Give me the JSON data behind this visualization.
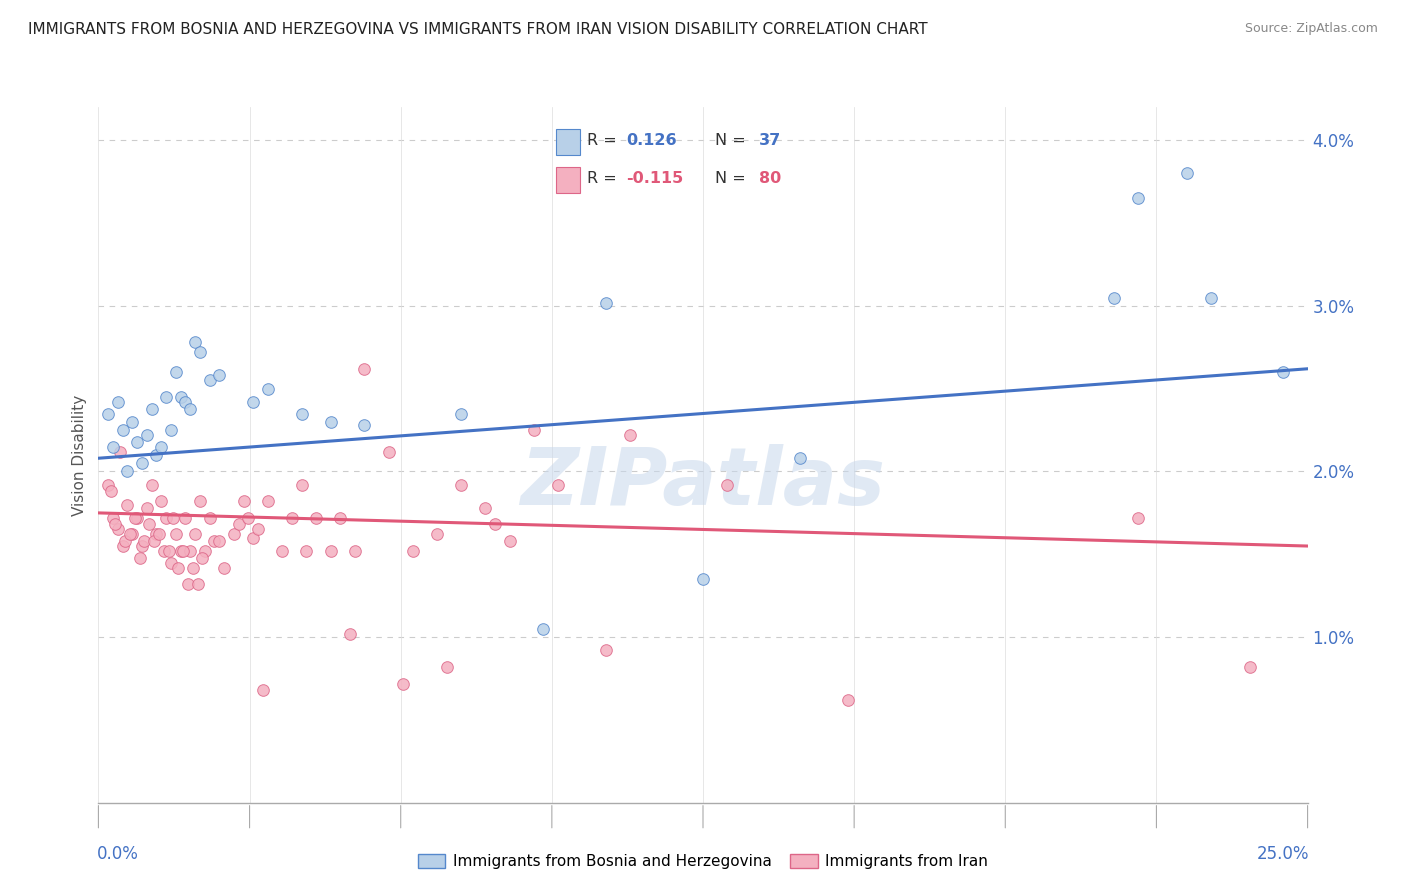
{
  "title": "IMMIGRANTS FROM BOSNIA AND HERZEGOVINA VS IMMIGRANTS FROM IRAN VISION DISABILITY CORRELATION CHART",
  "source": "Source: ZipAtlas.com",
  "ylabel": "Vision Disability",
  "xmin": 0.0,
  "xmax": 25.0,
  "ymin": 0.0,
  "ymax": 4.2,
  "ytick_vals": [
    0.0,
    1.0,
    2.0,
    3.0,
    4.0
  ],
  "ytick_labels": [
    "",
    "1.0%",
    "2.0%",
    "3.0%",
    "4.0%"
  ],
  "blue_R": 0.126,
  "blue_N": 37,
  "pink_R": -0.115,
  "pink_N": 80,
  "blue_color": "#b8d0e8",
  "pink_color": "#f4b0c0",
  "blue_edge_color": "#5588cc",
  "pink_edge_color": "#dd6688",
  "blue_line_color": "#4472c4",
  "pink_line_color": "#e05878",
  "blue_line_start_y": 2.08,
  "blue_line_end_y": 2.62,
  "pink_line_start_y": 1.75,
  "pink_line_end_y": 1.55,
  "blue_scatter_x": [
    0.2,
    0.3,
    0.4,
    0.5,
    0.6,
    0.7,
    0.8,
    0.9,
    1.0,
    1.1,
    1.2,
    1.3,
    1.4,
    1.5,
    1.6,
    1.7,
    1.8,
    1.9,
    2.0,
    2.1,
    2.3,
    2.5,
    3.2,
    3.5,
    4.2,
    4.8,
    5.5,
    7.5,
    9.2,
    10.5,
    12.5,
    14.5,
    21.0,
    21.5,
    22.5,
    23.0,
    24.5
  ],
  "blue_scatter_y": [
    2.35,
    2.15,
    2.42,
    2.25,
    2.0,
    2.3,
    2.18,
    2.05,
    2.22,
    2.38,
    2.1,
    2.15,
    2.45,
    2.25,
    2.6,
    2.45,
    2.42,
    2.38,
    2.78,
    2.72,
    2.55,
    2.58,
    2.42,
    2.5,
    2.35,
    2.3,
    2.28,
    2.35,
    1.05,
    3.02,
    1.35,
    2.08,
    3.05,
    3.65,
    3.8,
    3.05,
    2.6
  ],
  "pink_scatter_x": [
    0.2,
    0.3,
    0.4,
    0.5,
    0.6,
    0.7,
    0.8,
    0.9,
    1.0,
    1.1,
    1.2,
    1.3,
    1.4,
    1.5,
    1.6,
    1.7,
    1.8,
    1.9,
    2.0,
    2.1,
    2.2,
    2.3,
    2.4,
    2.5,
    2.6,
    2.8,
    2.9,
    3.0,
    3.1,
    3.2,
    3.3,
    3.5,
    3.8,
    4.0,
    4.2,
    4.5,
    4.8,
    5.0,
    5.2,
    5.5,
    6.0,
    6.5,
    7.0,
    7.5,
    8.0,
    8.5,
    9.0,
    9.5,
    10.5,
    11.0,
    0.25,
    0.35,
    0.45,
    0.55,
    0.65,
    0.75,
    0.85,
    0.95,
    1.05,
    1.15,
    1.25,
    1.35,
    1.45,
    1.55,
    1.65,
    1.75,
    1.85,
    1.95,
    2.05,
    2.15,
    3.4,
    4.3,
    5.3,
    6.3,
    7.2,
    8.2,
    13.0,
    15.5,
    21.5,
    23.8
  ],
  "pink_scatter_y": [
    1.92,
    1.72,
    1.65,
    1.55,
    1.8,
    1.62,
    1.72,
    1.55,
    1.78,
    1.92,
    1.62,
    1.82,
    1.72,
    1.45,
    1.62,
    1.52,
    1.72,
    1.52,
    1.62,
    1.82,
    1.52,
    1.72,
    1.58,
    1.58,
    1.42,
    1.62,
    1.68,
    1.82,
    1.72,
    1.6,
    1.65,
    1.82,
    1.52,
    1.72,
    1.92,
    1.72,
    1.52,
    1.72,
    1.02,
    2.62,
    2.12,
    1.52,
    1.62,
    1.92,
    1.78,
    1.58,
    2.25,
    1.92,
    0.92,
    2.22,
    1.88,
    1.68,
    2.12,
    1.58,
    1.62,
    1.72,
    1.48,
    1.58,
    1.68,
    1.58,
    1.62,
    1.52,
    1.52,
    1.72,
    1.42,
    1.52,
    1.32,
    1.42,
    1.32,
    1.48,
    0.68,
    1.52,
    1.52,
    0.72,
    0.82,
    1.68,
    1.92,
    0.62,
    1.72,
    0.82
  ],
  "watermark_text": "ZIPatlas",
  "background_color": "#ffffff",
  "grid_color": "#dddddd",
  "grid_dash_color": "#cccccc"
}
